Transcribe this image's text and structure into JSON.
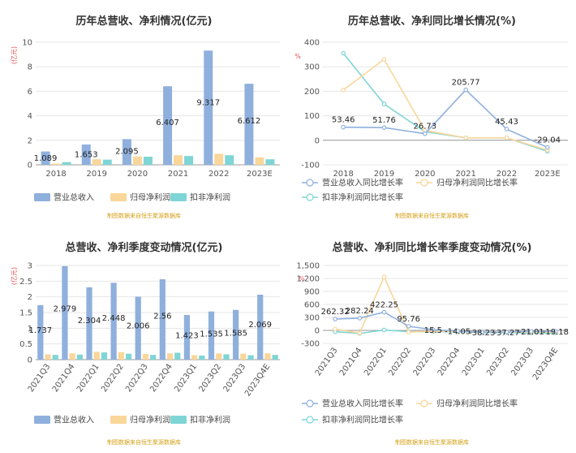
{
  "source_note": "制图数据来自恒生聚源数据库",
  "chart_data": [
    {
      "id": "annual_rev",
      "type": "bar",
      "title": "历年总营收、净利情况(亿元)",
      "unit": "(亿元)",
      "categories": [
        "2018",
        "2019",
        "2020",
        "2021",
        "2022",
        "2023E"
      ],
      "ylim": [
        0,
        10
      ],
      "yticks": [
        0,
        2,
        4,
        6,
        8,
        10
      ],
      "series": [
        {
          "name": "营业总收入",
          "color": "#8fb0dd",
          "values": [
            1.089,
            1.653,
            2.095,
            6.407,
            9.317,
            6.612
          ],
          "labels": [
            "1.089",
            "1.653",
            "2.095",
            "6.407",
            "9.317",
            "6.612"
          ]
        },
        {
          "name": "归母净利润",
          "color": "#f9d69a",
          "values": [
            0.1,
            0.45,
            0.68,
            0.78,
            0.9,
            0.6
          ],
          "labels": []
        },
        {
          "name": "扣非净利润",
          "color": "#7fd5d5",
          "values": [
            0.22,
            0.42,
            0.66,
            0.72,
            0.78,
            0.45
          ],
          "labels": []
        }
      ]
    },
    {
      "id": "annual_growth",
      "type": "line",
      "title": "历年总营收、净利同比增长情况(%)",
      "unit": "%",
      "categories": [
        "2018",
        "2019",
        "2020",
        "2021",
        "2022",
        "2023E"
      ],
      "ylim": [
        -100,
        400
      ],
      "yticks": [
        -100,
        0,
        100,
        200,
        300,
        400
      ],
      "series": [
        {
          "name": "营业总收入同比增长率",
          "color": "#8fb0dd",
          "values": [
            53.46,
            51.76,
            26.73,
            205.77,
            45.43,
            -29.04
          ],
          "labels": [
            "53.46",
            "51.76",
            "26.73",
            "205.77",
            "45.43",
            "-29.04"
          ]
        },
        {
          "name": "归母净利润同比增长率",
          "color": "#f9d69a",
          "values": [
            205,
            330,
            40,
            10,
            10,
            -40
          ],
          "labels": []
        },
        {
          "name": "扣非净利润同比增长率",
          "color": "#7fd5d5",
          "values": [
            355,
            148,
            35,
            10,
            10,
            -45
          ],
          "labels": []
        }
      ]
    },
    {
      "id": "quarterly_rev",
      "type": "bar",
      "title": "总营收、净利季度变动情况(亿元)",
      "unit": "(亿元)",
      "categories": [
        "2021Q3",
        "2021Q4",
        "2022Q1",
        "2022Q2",
        "2022Q3",
        "2022Q4",
        "2023Q1",
        "2023Q2",
        "2023Q3",
        "2023Q4E"
      ],
      "ylim": [
        0,
        3
      ],
      "yticks": [
        0,
        0.5,
        1,
        1.5,
        2,
        2.5,
        3
      ],
      "series": [
        {
          "name": "营业总收入",
          "color": "#8fb0dd",
          "values": [
            1.737,
            2.979,
            2.304,
            2.448,
            2.006,
            2.56,
            1.423,
            1.535,
            1.585,
            2.069
          ],
          "labels": [
            "1.737",
            "2.979",
            "2.304",
            "2.448",
            "2.006",
            "2.56",
            "1.423",
            "1.535",
            "1.585",
            "2.069"
          ]
        },
        {
          "name": "归母净利润",
          "color": "#f9d69a",
          "values": [
            0.17,
            0.2,
            0.25,
            0.24,
            0.18,
            0.2,
            0.14,
            0.2,
            0.19,
            0.2
          ],
          "labels": []
        },
        {
          "name": "扣非净利润",
          "color": "#7fd5d5",
          "values": [
            0.15,
            0.16,
            0.23,
            0.19,
            0.15,
            0.22,
            0.13,
            0.17,
            0.14,
            0.15
          ],
          "labels": []
        }
      ]
    },
    {
      "id": "quarterly_growth",
      "type": "line",
      "title": "总营收、净利同比增长率季度变动情况(%)",
      "unit": "%",
      "categories": [
        "2021Q3",
        "2021Q4",
        "2022Q1",
        "2022Q2",
        "2022Q3",
        "2022Q4",
        "2023Q1",
        "2023Q2",
        "2023Q3",
        "2023Q4E"
      ],
      "ylim": [
        -300,
        1500
      ],
      "yticks": [
        -300,
        0,
        300,
        600,
        900,
        1200,
        1500
      ],
      "ytick_labels": [
        "-300",
        "0",
        "300",
        "600",
        "900",
        "1,200",
        "1,500"
      ],
      "series": [
        {
          "name": "营业总收入同比增长率",
          "color": "#8fb0dd",
          "values": [
            262.32,
            282.24,
            422.25,
            95.76,
            15.5,
            -14.05,
            -38.23,
            -37.27,
            -21.01,
            -19.18
          ],
          "labels": [
            "262.32",
            "282.24",
            "422.25",
            "95.76",
            "15.5",
            "-14.05",
            "-38.23",
            "-37.27",
            "-21.01",
            "-19.18"
          ]
        },
        {
          "name": "归母净利润同比增长率",
          "color": "#f9d69a",
          "values": [
            30,
            -60,
            1240,
            -40,
            -20,
            -20,
            -40,
            -40,
            -40,
            -40
          ],
          "labels": []
        },
        {
          "name": "扣非净利润同比增长率",
          "color": "#7fd5d5",
          "values": [
            -30,
            -70,
            10,
            -30,
            -30,
            -30,
            -50,
            -50,
            -60,
            -60
          ],
          "labels": []
        }
      ]
    }
  ]
}
